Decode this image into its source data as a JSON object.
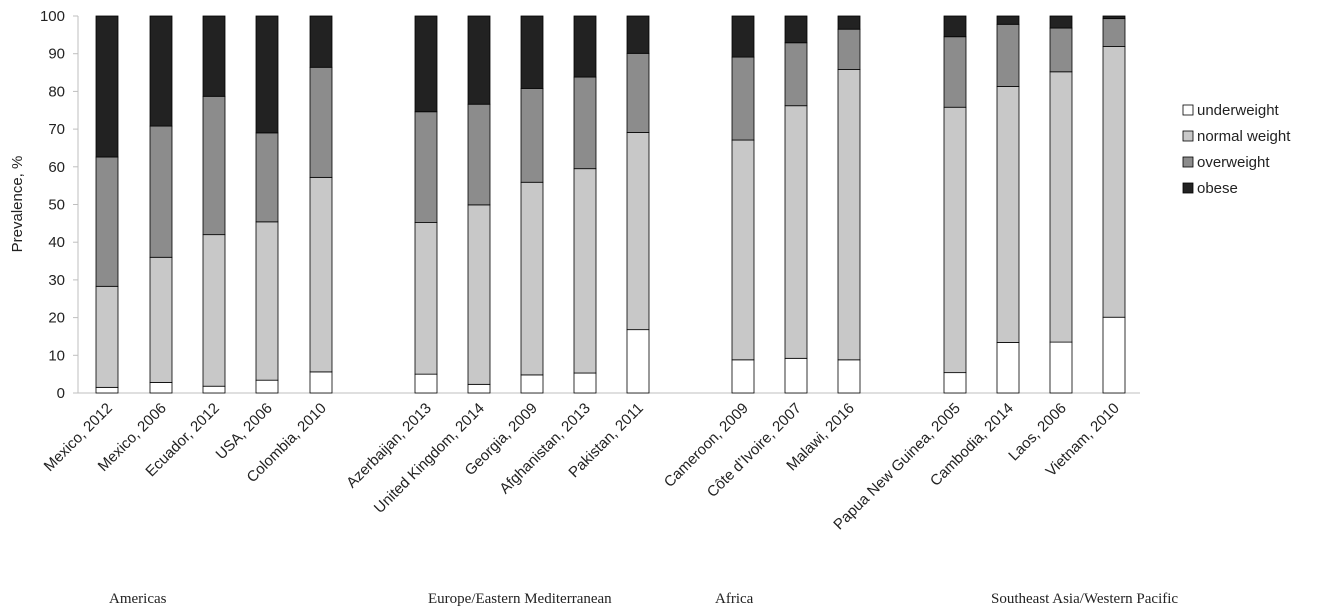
{
  "chart_data": {
    "type": "bar",
    "stacked": true,
    "title": "",
    "xlabel": "",
    "ylabel": "Prevalence, %",
    "ylim": [
      0,
      100
    ],
    "yticks": [
      0,
      10,
      20,
      30,
      40,
      50,
      60,
      70,
      80,
      90,
      100
    ],
    "grid": false,
    "legend_position": "right",
    "groups": [
      {
        "name": "Americas",
        "categories": [
          "Mexico, 2012",
          "Mexico, 2006",
          "Ecuador, 2012",
          "USA, 2006",
          "Colombia, 2010"
        ]
      },
      {
        "name": "Europe/Eastern Mediterranean",
        "categories": [
          "Azerbaijan, 2013",
          "United Kingdom, 2014",
          "Georgia, 2009",
          "Afghanistan, 2013",
          "Pakistan, 2011"
        ]
      },
      {
        "name": "Africa",
        "categories": [
          "Cameroon, 2009",
          "Côte d’Ivoire, 2007",
          "Malawi, 2016"
        ]
      },
      {
        "name": "Southeast Asia/Western Pacific",
        "categories": [
          "Papua New Guinea, 2005",
          "Cambodia, 2014",
          "Laos, 2006",
          "Vietnam, 2010"
        ]
      }
    ],
    "categories": [
      "Mexico, 2012",
      "Mexico, 2006",
      "Ecuador, 2012",
      "USA, 2006",
      "Colombia, 2010",
      "Azerbaijan, 2013",
      "United Kingdom, 2014",
      "Georgia, 2009",
      "Afghanistan, 2013",
      "Pakistan, 2011",
      "Cameroon, 2009",
      "Côte d’Ivoire, 2007",
      "Malawi, 2016",
      "Papua New Guinea, 2005",
      "Cambodia, 2014",
      "Laos, 2006",
      "Vietnam, 2010"
    ],
    "series": [
      {
        "name": "underweight",
        "color": "#ffffff",
        "values": [
          1.5,
          2.8,
          1.8,
          3.4,
          5.6,
          5.0,
          2.3,
          4.8,
          5.3,
          16.8,
          8.8,
          9.2,
          8.8,
          5.4,
          13.4,
          13.5,
          20.1
        ]
      },
      {
        "name": "normal weight",
        "color": "#c8c8c8",
        "values": [
          26.8,
          33.2,
          40.2,
          42.0,
          51.6,
          40.2,
          47.6,
          51.1,
          54.2,
          52.3,
          58.3,
          67.0,
          77.0,
          70.4,
          67.9,
          71.7,
          71.8
        ]
      },
      {
        "name": "overweight",
        "color": "#8c8c8c",
        "values": [
          34.3,
          34.8,
          36.7,
          23.6,
          29.2,
          29.4,
          26.7,
          24.9,
          24.3,
          21.0,
          22.0,
          16.7,
          10.7,
          18.7,
          16.5,
          11.6,
          7.4
        ]
      },
      {
        "name": "obese",
        "color": "#222222",
        "values": [
          37.4,
          29.2,
          21.3,
          31.0,
          13.6,
          25.4,
          23.4,
          19.2,
          16.2,
          9.9,
          10.9,
          7.1,
          3.5,
          5.5,
          2.2,
          3.2,
          0.7
        ]
      }
    ],
    "category_label_colors": {
      "USA, 2006": "#5b6b8c",
      "Côte d’Ivoire, 2007": "#5b6b8c"
    }
  }
}
